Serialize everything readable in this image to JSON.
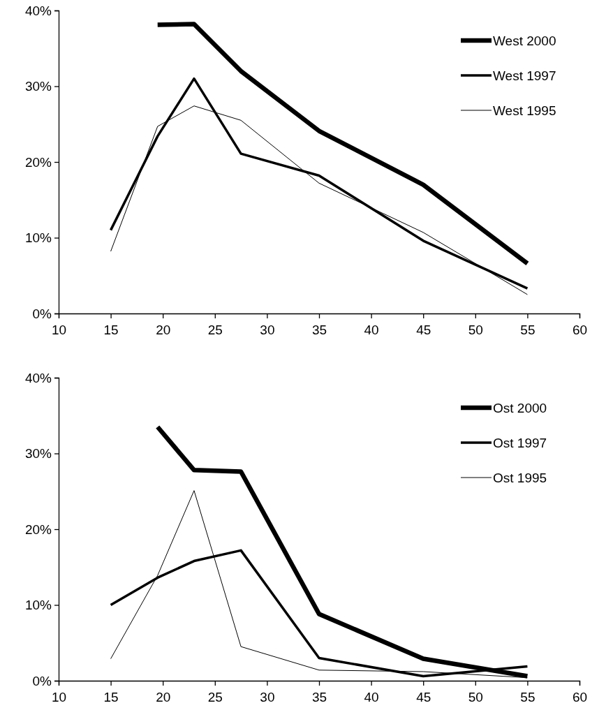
{
  "chart_data": [
    {
      "type": "line",
      "x": [
        15,
        19.5,
        23,
        27.5,
        35,
        45,
        55
      ],
      "xlim": [
        10,
        60
      ],
      "xticks": [
        10,
        15,
        20,
        25,
        30,
        35,
        40,
        45,
        50,
        55,
        60
      ],
      "ylim": [
        0,
        40
      ],
      "yticks": [
        {
          "value": 0,
          "label": "0%"
        },
        {
          "value": 10,
          "label": "10%"
        },
        {
          "value": 20,
          "label": "20%"
        },
        {
          "value": 30,
          "label": "30%"
        },
        {
          "value": 40,
          "label": "40%"
        }
      ],
      "legend": "top right",
      "series": [
        {
          "name": "West 2000",
          "color": "#000000",
          "values": [
            null,
            38.1,
            38.2,
            32.0,
            24.1,
            17.0,
            6.6
          ]
        },
        {
          "name": "West 1997",
          "color": "#000000",
          "values": [
            11.0,
            23.4,
            31.0,
            21.1,
            18.2,
            9.6,
            3.3
          ]
        },
        {
          "name": "West 1995",
          "color": "#000000",
          "values": [
            8.2,
            24.7,
            27.4,
            25.5,
            17.2,
            10.7,
            2.5
          ]
        }
      ]
    },
    {
      "type": "line",
      "x": [
        15,
        19.5,
        23,
        27.5,
        35,
        45,
        55
      ],
      "xlim": [
        10,
        60
      ],
      "xticks": [
        10,
        15,
        20,
        25,
        30,
        35,
        40,
        45,
        50,
        55,
        60
      ],
      "ylim": [
        0,
        40
      ],
      "yticks": [
        {
          "value": 0,
          "label": "0%"
        },
        {
          "value": 10,
          "label": "10%"
        },
        {
          "value": 20,
          "label": "20%"
        },
        {
          "value": 30,
          "label": "30%"
        },
        {
          "value": 40,
          "label": "40%"
        }
      ],
      "legend": "top right",
      "series": [
        {
          "name": "Ost 2000",
          "color": "#000000",
          "values": [
            null,
            33.5,
            27.8,
            27.6,
            8.8,
            2.9,
            0.6
          ]
        },
        {
          "name": "Ost 1997",
          "color": "#000000",
          "values": [
            10.0,
            13.6,
            15.8,
            17.2,
            3.0,
            0.6,
            1.9
          ]
        },
        {
          "name": "Ost 1995",
          "color": "#000000",
          "values": [
            2.9,
            13.9,
            25.1,
            4.5,
            1.4,
            1.2,
            0.4
          ]
        }
      ]
    }
  ]
}
